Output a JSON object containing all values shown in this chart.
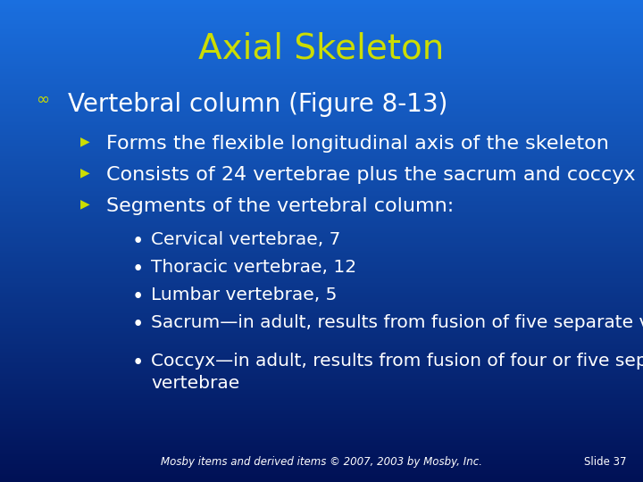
{
  "title": "Axial Skeleton",
  "title_color": "#CCDD00",
  "title_fontsize": 28,
  "bg_color_top": "#1A6FDF",
  "bg_color_bottom": "#001055",
  "text_color": "#FFFFFF",
  "bullet_color": "#CCDD00",
  "footer_text": "Mosby items and derived items © 2007, 2003 by Mosby, Inc.",
  "slide_number": "Slide 37",
  "level1_text": "Vertebral column (Figure 8-13)",
  "level1_fontsize": 20,
  "level2_items": [
    "Forms the flexible longitudinal axis of the skeleton",
    "Consists of 24 vertebrae plus the sacrum and coccyx",
    "Segments of the vertebral column:"
  ],
  "level2_fontsize": 16,
  "level3_items": [
    "Cervical vertebrae, 7",
    "Thoracic vertebrae, 12",
    "Lumbar vertebrae, 5",
    "Sacrum—in adult, results from fusion of five separate vertebrae",
    "Coccyx—in adult, results from fusion of four or five separate\nvertebrae"
  ],
  "level3_fontsize": 14.5
}
